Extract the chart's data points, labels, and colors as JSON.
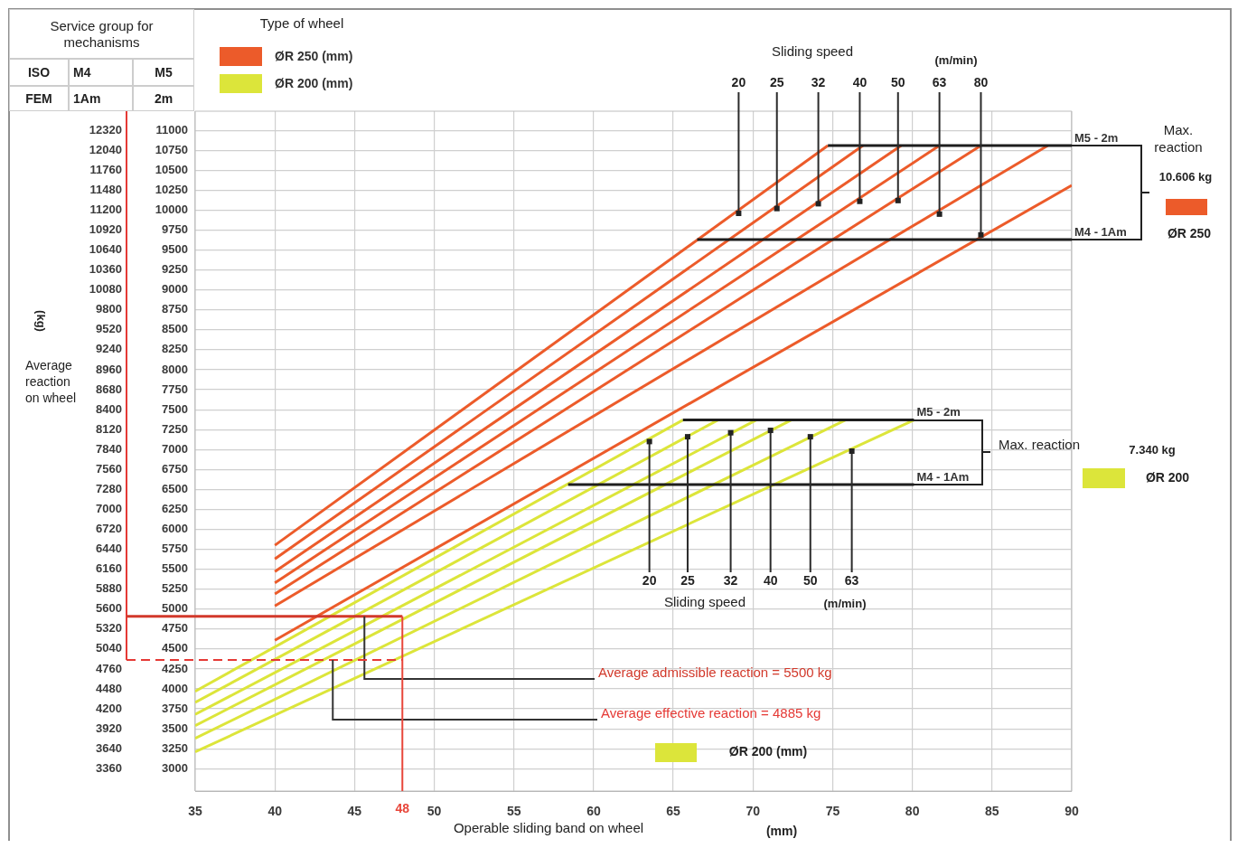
{
  "chart_data": {
    "type": "line",
    "legend_title": "Type of wheel",
    "legend": "top left",
    "xlabel": "Operable sliding band on wheel",
    "y2label": "(kg)",
    "xlim": [
      35,
      90
    ],
    "xticks": [
      35,
      40,
      45,
      50,
      55,
      60,
      65,
      70,
      75,
      80,
      85,
      90
    ],
    "ylim": [
      2720,
      11240
    ],
    "yticks": [
      3000,
      3250,
      3500,
      3750,
      4000,
      4250,
      4500,
      4750,
      5000,
      5250,
      5500,
      5750,
      6000,
      6250,
      6500,
      6750,
      7000,
      7250,
      7500,
      7750,
      8000,
      8250,
      8500,
      8750,
      9000,
      9250,
      9500,
      9750,
      10000,
      10250,
      10500,
      10750,
      11000
    ],
    "y2lim": [
      3046.4,
      12588.8
    ],
    "y2ticks": [
      3360,
      3640,
      3920,
      4200,
      4480,
      4760,
      5040,
      5320,
      5600,
      5880,
      6160,
      6440,
      6720,
      7000,
      7280,
      7560,
      7840,
      8120,
      8400,
      8680,
      8960,
      9240,
      9520,
      9800,
      10080,
      10360,
      10640,
      10920,
      11200,
      11480,
      11760,
      12040,
      12320
    ],
    "grid": true,
    "series": [
      {
        "name": "ØR 250 (mm)",
        "color": "#ec5b2a",
        "x": [
          40,
          74.7
        ],
        "values": [
          5800,
          10810
        ]
      },
      {
        "color": "#ec5b2a",
        "x": [
          40,
          76.9
        ],
        "values": [
          5630,
          10810
        ]
      },
      {
        "color": "#ec5b2a",
        "x": [
          40,
          79.3
        ],
        "values": [
          5470,
          10810
        ]
      },
      {
        "color": "#ec5b2a",
        "x": [
          40,
          81.7
        ],
        "values": [
          5330,
          10810
        ]
      },
      {
        "color": "#ec5b2a",
        "x": [
          40,
          84.3
        ],
        "values": [
          5190,
          10810
        ]
      },
      {
        "color": "#ec5b2a",
        "x": [
          40,
          88.5
        ],
        "values": [
          5040,
          10810
        ]
      },
      {
        "color": "#ec5b2a",
        "x": [
          40,
          90
        ],
        "values": [
          4610,
          10310
        ]
      },
      {
        "name": "ØR 200 (mm)",
        "color": "#dce53a",
        "x": [
          35,
          65.6
        ],
        "values": [
          3970,
          7370
        ]
      },
      {
        "color": "#dce53a",
        "x": [
          35,
          67.8
        ],
        "values": [
          3830,
          7370
        ]
      },
      {
        "color": "#dce53a",
        "x": [
          35,
          70.2
        ],
        "values": [
          3680,
          7370
        ]
      },
      {
        "color": "#dce53a",
        "x": [
          35,
          72.4
        ],
        "values": [
          3540,
          7370
        ]
      },
      {
        "color": "#dce53a",
        "x": [
          35,
          75.8
        ],
        "values": [
          3380,
          7370
        ]
      },
      {
        "color": "#dce53a",
        "x": [
          35,
          80.1
        ],
        "values": [
          3210,
          7370
        ]
      },
      {
        "color": "#1e1e1e",
        "x": [
          74.7,
          90
        ],
        "values": [
          10810,
          10810
        ]
      },
      {
        "color": "#1e1e1e",
        "x": [
          66.5,
          90
        ],
        "values": [
          9630,
          9630
        ]
      },
      {
        "color": "#1e1e1e",
        "x": [
          65.6,
          80.1
        ],
        "values": [
          7370,
          7370
        ]
      },
      {
        "color": "#1e1e1e",
        "x": [
          58.4,
          80.1
        ],
        "values": [
          6560,
          6560
        ]
      }
    ],
    "ref_lines": [
      {
        "axis": "y2",
        "value": 5500,
        "label": "Average admissible reaction = 5500 kg",
        "color": "#d2392b"
      },
      {
        "axis": "y2",
        "value": 4885,
        "label": "Average effective reaction = 4885 kg",
        "color": "#e53935",
        "line_style": "dashed"
      },
      {
        "axis": "x",
        "value": 48,
        "label": "48",
        "color": "#e8463a"
      }
    ],
    "annotations": [
      {
        "text": "20",
        "x": 69.1,
        "y": 9960
      },
      {
        "text": "25",
        "x": 71.5,
        "y": 10020
      },
      {
        "text": "32",
        "x": 74.1,
        "y": 10080
      },
      {
        "text": "40",
        "x": 76.7,
        "y": 10110
      },
      {
        "text": "50",
        "x": 79.1,
        "y": 10120
      },
      {
        "text": "63",
        "x": 81.7,
        "y": 9950
      },
      {
        "text": "80",
        "x": 84.3,
        "y": 9690
      },
      {
        "text": "20",
        "x": 63.5,
        "y": 7100
      },
      {
        "text": "25",
        "x": 65.9,
        "y": 7160
      },
      {
        "text": "32",
        "x": 68.6,
        "y": 7210
      },
      {
        "text": "40",
        "x": 71.1,
        "y": 7240
      },
      {
        "text": "50",
        "x": 73.6,
        "y": 7160
      },
      {
        "text": "63",
        "x": 76.2,
        "y": 6980
      },
      {
        "text": "M5 - 2m",
        "x": 90,
        "y": 10810
      },
      {
        "text": "M4 - 1Am",
        "x": 90,
        "y": 9630
      },
      {
        "text": "M5 - 2m",
        "x": 80.1,
        "y": 7370
      },
      {
        "text": "M4 - 1Am",
        "x": 80.1,
        "y": 6560
      },
      "Sliding speed",
      "(m/min)",
      "Sliding speed",
      "(m/min)",
      "Max. reaction",
      "10.606 kg",
      "ØR 250",
      "Max. reaction",
      "7.340 kg",
      "ØR 200",
      "ØR 200 (mm)",
      "(mm)",
      "Service group for mechanisms",
      "ISO",
      "FEM",
      "M4",
      "1Am",
      "M5",
      "2m",
      "Average reaction on wheel"
    ]
  }
}
